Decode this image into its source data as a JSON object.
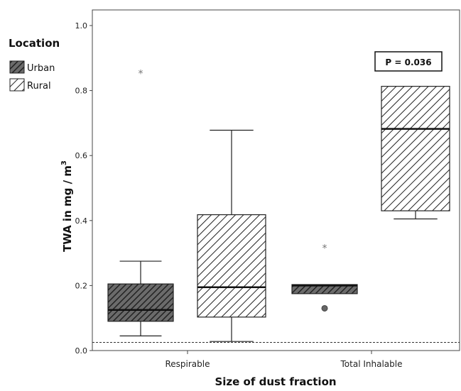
{
  "chart_data": {
    "type": "boxplot",
    "title": "",
    "xlabel": "Size of dust fraction",
    "ylabel": "TWA in mg / m",
    "ylabel_superscript": "3",
    "ylim": [
      0,
      1.0
    ],
    "yticks": [
      "0.0",
      "0.2",
      "0.4",
      "0.6",
      "0.8",
      "1.0"
    ],
    "categories": [
      "Respirable",
      "Total Inhalable"
    ],
    "legend": {
      "title": "Location",
      "position": "top-left",
      "entries": [
        "Urban",
        "Rural"
      ]
    },
    "series": [
      {
        "name": "Urban",
        "pattern": "dense-diagonal-dark",
        "boxes": [
          {
            "category": "Respirable",
            "whisker_low": 0.045,
            "q1": 0.09,
            "median": 0.125,
            "q3": 0.205,
            "whisker_high": 0.275,
            "outliers": [],
            "extremes": [
              0.855
            ]
          },
          {
            "category": "Total Inhalable",
            "whisker_low": 0.175,
            "q1": 0.175,
            "median": 0.2,
            "q3": 0.203,
            "whisker_high": 0.203,
            "outliers": [
              0.13
            ],
            "extremes": [
              0.318
            ]
          }
        ]
      },
      {
        "name": "Rural",
        "pattern": "sparse-diagonal-light",
        "boxes": [
          {
            "category": "Respirable",
            "whisker_low": 0.028,
            "q1": 0.103,
            "median": 0.195,
            "q3": 0.418,
            "whisker_high": 0.678,
            "outliers": [],
            "extremes": []
          },
          {
            "category": "Total Inhalable",
            "whisker_low": 0.405,
            "q1": 0.43,
            "median": 0.682,
            "q3": 0.813,
            "whisker_high": 0.813,
            "outliers": [],
            "extremes": []
          }
        ]
      }
    ],
    "reference_line": {
      "value": 0.025,
      "style": "dotted"
    },
    "annotation": "P = 0.036",
    "grid": false
  }
}
